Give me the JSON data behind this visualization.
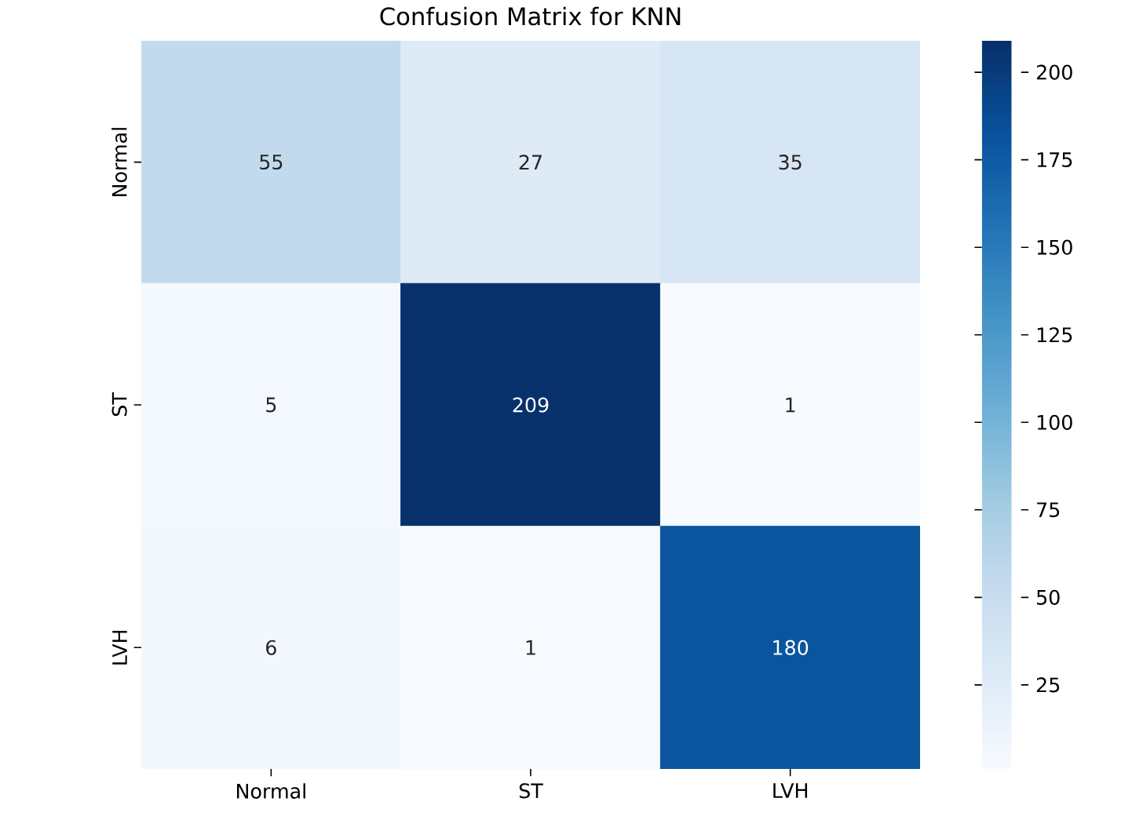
{
  "chart_data": {
    "type": "heatmap",
    "title": "Confusion Matrix for KNN",
    "categories": [
      "Normal",
      "ST",
      "LVH"
    ],
    "y_categories": [
      "Normal",
      "ST",
      "LVH"
    ],
    "cells": [
      [
        55,
        27,
        35
      ],
      [
        5,
        209,
        1
      ],
      [
        6,
        1,
        180
      ]
    ],
    "data_labels": true,
    "clim": [
      1,
      209
    ],
    "cticks": [
      25,
      50,
      75,
      100,
      125,
      150,
      175,
      200
    ]
  }
}
